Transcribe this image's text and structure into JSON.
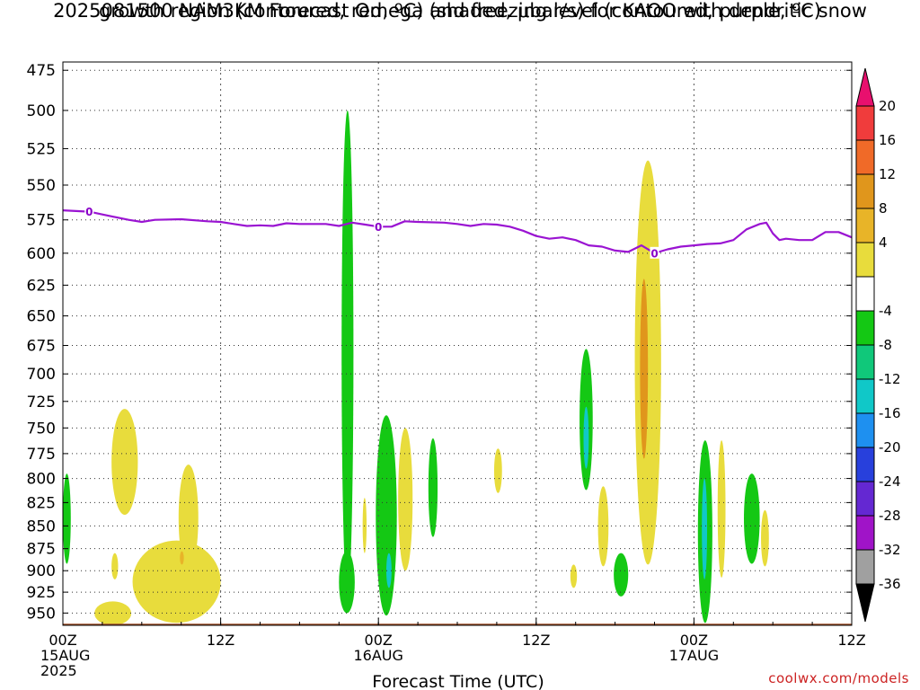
{
  "chart_data": {
    "type": "heatmap",
    "title": "2025081500 NAM3KM Forecast Omega (shaded, μbar/s) for KAOO with dendritic snow growth region (contoured, red, ºC) and freezing level (contoured, purple, ºC)",
    "title_line1": "2025081500 NAM3KM Forecast Omega (shaded, μbar/s) for KAOO with dendritic snow",
    "title_line2": "growth region (contoured, red, ºC) and freezing level (contoured, purple, ºC)",
    "xlabel": "Forecast Time (UTC)",
    "ylabel": "",
    "credit": "coolwx.com/models",
    "x_range_hours": [
      0,
      60
    ],
    "y_range_hpa": [
      470,
      965
    ],
    "y_log_scale": true,
    "y_axis_inverted": true,
    "grid": true,
    "y_ticks": [
      475,
      500,
      525,
      550,
      575,
      600,
      625,
      650,
      675,
      700,
      725,
      750,
      775,
      800,
      825,
      850,
      875,
      900,
      925,
      950
    ],
    "x_ticks": [
      {
        "hour": 0,
        "lines": [
          "00Z",
          "15AUG",
          "2025"
        ]
      },
      {
        "hour": 12,
        "lines": [
          "12Z"
        ]
      },
      {
        "hour": 24,
        "lines": [
          "00Z",
          "16AUG"
        ]
      },
      {
        "hour": 36,
        "lines": [
          "12Z"
        ]
      },
      {
        "hour": 48,
        "lines": [
          "00Z",
          "17AUG"
        ]
      },
      {
        "hour": 60,
        "lines": [
          "12Z"
        ]
      }
    ],
    "colorbar": {
      "labels": [
        "20",
        "16",
        "12",
        "8",
        "4",
        "-4",
        "-8",
        "-12",
        "-16",
        "-20",
        "-24",
        "-28",
        "-32",
        "-36"
      ],
      "levels": [
        {
          "min": 20,
          "max": null,
          "color": "#e8106e"
        },
        {
          "min": 16,
          "max": 20,
          "color": "#f03c3c"
        },
        {
          "min": 12,
          "max": 16,
          "color": "#f06a28"
        },
        {
          "min": 8,
          "max": 12,
          "color": "#e0961c"
        },
        {
          "min": 4,
          "max": 8,
          "color": "#e8b428"
        },
        {
          "min": 0,
          "max": 4,
          "color": "#e8dc3c"
        },
        {
          "min": -4,
          "max": 4,
          "color": "#ffffff"
        },
        {
          "min": -8,
          "max": -4,
          "color": "#14c814"
        },
        {
          "min": -12,
          "max": -8,
          "color": "#10c87a"
        },
        {
          "min": -16,
          "max": -12,
          "color": "#10c8c8"
        },
        {
          "min": -20,
          "max": -16,
          "color": "#1e90f0"
        },
        {
          "min": -24,
          "max": -20,
          "color": "#2840dc"
        },
        {
          "min": -28,
          "max": -24,
          "color": "#6428d2"
        },
        {
          "min": -32,
          "max": -28,
          "color": "#a014c8"
        },
        {
          "min": -36,
          "max": -32,
          "color": "#a0a0a0"
        },
        {
          "min": null,
          "max": -36,
          "color": "#000000"
        }
      ]
    },
    "freezing_level": {
      "color": "#9a14d2",
      "label": "0",
      "label_hours": [
        2,
        24,
        45
      ],
      "points": [
        [
          0,
          568
        ],
        [
          2,
          569
        ],
        [
          3,
          571
        ],
        [
          5,
          575
        ],
        [
          6,
          576.5
        ],
        [
          7,
          575
        ],
        [
          9,
          574.5
        ],
        [
          11,
          576
        ],
        [
          12,
          576.5
        ],
        [
          13,
          578
        ],
        [
          14,
          579.5
        ],
        [
          15,
          579
        ],
        [
          16,
          579.5
        ],
        [
          17,
          577.5
        ],
        [
          18,
          578
        ],
        [
          20,
          578
        ],
        [
          21,
          579.5
        ],
        [
          22,
          577
        ],
        [
          23,
          578.5
        ],
        [
          24,
          580
        ],
        [
          25,
          580
        ],
        [
          26,
          576
        ],
        [
          27,
          576.5
        ],
        [
          29,
          577
        ],
        [
          30,
          578
        ],
        [
          31,
          579.5
        ],
        [
          32,
          578
        ],
        [
          33,
          578.5
        ],
        [
          34,
          580
        ],
        [
          35,
          583
        ],
        [
          36,
          587
        ],
        [
          37,
          589
        ],
        [
          38,
          588
        ],
        [
          39,
          590
        ],
        [
          40,
          594
        ],
        [
          41,
          595
        ],
        [
          42,
          598
        ],
        [
          43,
          599
        ],
        [
          44,
          594
        ],
        [
          45,
          600
        ],
        [
          46,
          597
        ],
        [
          47,
          595
        ],
        [
          48,
          594
        ],
        [
          49,
          593
        ],
        [
          50,
          592.5
        ],
        [
          51,
          590
        ],
        [
          52,
          582
        ],
        [
          53,
          578
        ],
        [
          53.5,
          577
        ],
        [
          54,
          585
        ],
        [
          54.5,
          590
        ],
        [
          55,
          589
        ],
        [
          56,
          590
        ],
        [
          57,
          590
        ],
        [
          58,
          584
        ],
        [
          59,
          584
        ],
        [
          60,
          588
        ]
      ]
    },
    "terrain": {
      "color": "#a0522d",
      "surface_pressure_hpa": 963
    },
    "omega_features": [
      {
        "level": "0-4",
        "label": "weak upward motion",
        "t0": 3.7,
        "t1": 5.7,
        "p0": 732,
        "p1": 838
      },
      {
        "level": "0-4",
        "label": "weak upward motion",
        "t0": 2.4,
        "t1": 5.2,
        "p0": 936,
        "p1": 965
      },
      {
        "level": "0-4",
        "label": "weak upward motion",
        "t0": 5.3,
        "t1": 12.0,
        "p0": 866,
        "p1": 962
      },
      {
        "level": "0-4",
        "label": "weak upward motion",
        "t0": 8.8,
        "t1": 10.3,
        "p0": 786,
        "p1": 900
      },
      {
        "level": "0-4",
        "label": "weak upward motion",
        "t0": 3.7,
        "t1": 4.2,
        "p0": 880,
        "p1": 910
      },
      {
        "level": "4-8",
        "label": "moderate upward motion",
        "t0": 8.9,
        "t1": 9.2,
        "p0": 878,
        "p1": 893
      },
      {
        "level": "-4--8",
        "label": "downward motion",
        "t0": 0.0,
        "t1": 0.6,
        "p0": 795,
        "p1": 892
      },
      {
        "level": "-4--8",
        "label": "downward motion",
        "t0": 21.0,
        "t1": 22.2,
        "p0": 878,
        "p1": 950
      },
      {
        "level": "-4--8",
        "label": "downward motion",
        "t0": 21.2,
        "t1": 22.1,
        "p0": 500,
        "p1": 930
      },
      {
        "level": "-4--8",
        "label": "downward motion",
        "t0": 23.8,
        "t1": 25.4,
        "p0": 738,
        "p1": 953
      },
      {
        "level": "-12--16",
        "label": "strong downward motion",
        "t0": 24.6,
        "t1": 25.0,
        "p0": 880,
        "p1": 920
      },
      {
        "level": "0-4",
        "label": "weak upward motion",
        "t0": 25.5,
        "t1": 26.6,
        "p0": 750,
        "p1": 900
      },
      {
        "level": "0-4",
        "label": "weak upward motion",
        "t0": 22.8,
        "t1": 23.1,
        "p0": 820,
        "p1": 880
      },
      {
        "level": "-4--8",
        "label": "downward motion",
        "t0": 27.8,
        "t1": 28.5,
        "p0": 760,
        "p1": 862
      },
      {
        "level": "0-4",
        "label": "weak upward motion",
        "t0": 32.8,
        "t1": 33.4,
        "p0": 770,
        "p1": 815
      },
      {
        "level": "0-4",
        "label": "weak upward motion",
        "t0": 38.6,
        "t1": 39.1,
        "p0": 893,
        "p1": 920
      },
      {
        "level": "-4--8",
        "label": "downward motion",
        "t0": 39.3,
        "t1": 40.3,
        "p0": 678,
        "p1": 812
      },
      {
        "level": "-12--16",
        "label": "strong downward motion",
        "t0": 39.6,
        "t1": 40.0,
        "p0": 730,
        "p1": 790
      },
      {
        "level": "0-4",
        "label": "weak upward motion",
        "t0": 40.7,
        "t1": 41.5,
        "p0": 808,
        "p1": 895
      },
      {
        "level": "-4--8",
        "label": "downward motion",
        "t0": 41.9,
        "t1": 43.0,
        "p0": 880,
        "p1": 930
      },
      {
        "level": "0-4",
        "label": "weak upward motion",
        "t0": 43.5,
        "t1": 45.5,
        "p0": 533,
        "p1": 893
      },
      {
        "level": "8-12",
        "label": "strong upward motion",
        "t0": 43.9,
        "t1": 44.5,
        "p0": 620,
        "p1": 780
      },
      {
        "level": "-4--8",
        "label": "downward motion",
        "t0": 48.3,
        "t1": 49.4,
        "p0": 762,
        "p1": 962
      },
      {
        "level": "-12--16",
        "label": "strong downward motion",
        "t0": 48.6,
        "t1": 49.0,
        "p0": 800,
        "p1": 910
      },
      {
        "level": "0-4",
        "label": "weak upward motion",
        "t0": 49.8,
        "t1": 50.4,
        "p0": 762,
        "p1": 908
      },
      {
        "level": "-4--8",
        "label": "downward motion",
        "t0": 51.8,
        "t1": 53.0,
        "p0": 795,
        "p1": 892
      },
      {
        "level": "0-4",
        "label": "weak upward motion",
        "t0": 53.1,
        "t1": 53.7,
        "p0": 833,
        "p1": 895
      }
    ]
  }
}
